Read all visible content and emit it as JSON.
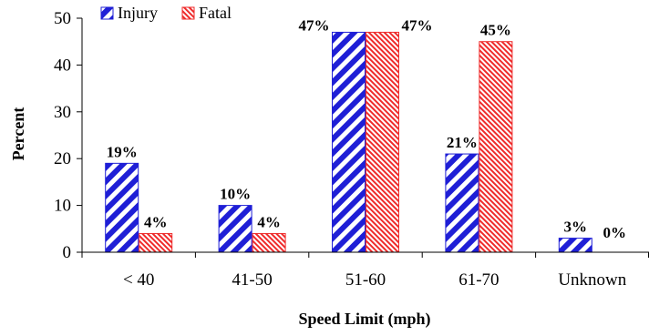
{
  "chart_data": {
    "type": "bar",
    "categories": [
      "< 40",
      "41-50",
      "51-60",
      "61-70",
      "Unknown"
    ],
    "series": [
      {
        "name": "Injury",
        "values": [
          19,
          10,
          47,
          21,
          3
        ],
        "labels": [
          "19%",
          "10%",
          "47%",
          "21%",
          "3%"
        ]
      },
      {
        "name": "Fatal",
        "values": [
          4,
          4,
          47,
          45,
          0
        ],
        "labels": [
          "4%",
          "4%",
          "47%",
          "45%",
          "0%"
        ]
      }
    ],
    "xlabel": "Speed Limit (mph)",
    "ylabel": "Percent",
    "ylim": [
      0,
      50
    ],
    "yticks": [
      "0",
      "10",
      "20",
      "30",
      "40",
      "50"
    ],
    "grid": false,
    "legend_position": "top-left",
    "colors": {
      "injury": "#1f1fd6",
      "fatal": "#ef2b2b"
    }
  }
}
